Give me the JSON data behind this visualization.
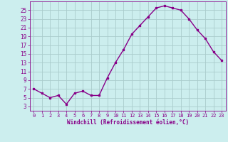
{
  "x": [
    0,
    1,
    2,
    3,
    4,
    5,
    6,
    7,
    8,
    9,
    10,
    11,
    12,
    13,
    14,
    15,
    16,
    17,
    18,
    19,
    20,
    21,
    22,
    23
  ],
  "y": [
    7,
    6,
    5,
    5.5,
    3.5,
    6,
    6.5,
    5.5,
    5.5,
    9.5,
    13,
    16,
    19.5,
    21.5,
    23.5,
    25.5,
    26,
    25.5,
    25,
    23,
    20.5,
    18.5,
    15.5,
    13.5
  ],
  "line_color": "#880088",
  "marker": "s",
  "marker_size": 2,
  "bg_color": "#cceeee",
  "grid_color": "#aacccc",
  "xlabel": "Windchill (Refroidissement éolien,°C)",
  "xlabel_color": "#880088",
  "tick_color": "#880088",
  "label_color": "#880088",
  "ylim": [
    2,
    27
  ],
  "xlim": [
    -0.5,
    23.5
  ],
  "yticks": [
    3,
    5,
    7,
    9,
    11,
    13,
    15,
    17,
    19,
    21,
    23,
    25
  ],
  "xticks": [
    0,
    1,
    2,
    3,
    4,
    5,
    6,
    7,
    8,
    9,
    10,
    11,
    12,
    13,
    14,
    15,
    16,
    17,
    18,
    19,
    20,
    21,
    22,
    23
  ],
  "line_width": 1.0
}
